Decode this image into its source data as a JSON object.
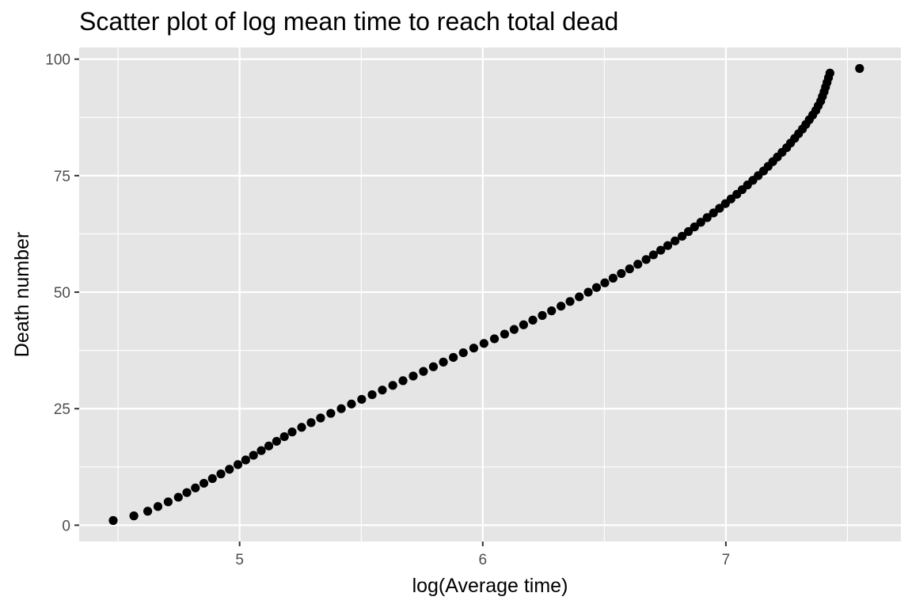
{
  "chart_data": {
    "type": "scatter",
    "title": "Scatter plot of log mean time to reach total dead",
    "xlabel": "log(Average time)",
    "ylabel": "Death number",
    "xlim": [
      4.34,
      7.72
    ],
    "ylim": [
      -3.5,
      102.5
    ],
    "x_ticks": [
      5,
      6,
      7
    ],
    "x_tick_labels": [
      "5",
      "6",
      "7"
    ],
    "y_ticks": [
      0,
      25,
      50,
      75,
      100
    ],
    "y_tick_labels": [
      "0",
      "25",
      "50",
      "75",
      "100"
    ],
    "grid": true,
    "legend": "none",
    "colors": {
      "panel": "#e5e5e5",
      "grid": "#ffffff",
      "point": "#000000",
      "tick_text": "#4d4d4d",
      "tick_mark": "#333333"
    },
    "points": [
      [
        4.48,
        1
      ],
      [
        4.565,
        2
      ],
      [
        4.622,
        3
      ],
      [
        4.664,
        4
      ],
      [
        4.706,
        5
      ],
      [
        4.748,
        6
      ],
      [
        4.783,
        7
      ],
      [
        4.818,
        8
      ],
      [
        4.853,
        9
      ],
      [
        4.888,
        10
      ],
      [
        4.923,
        11
      ],
      [
        4.958,
        12
      ],
      [
        4.993,
        13
      ],
      [
        5.025,
        14
      ],
      [
        5.057,
        15
      ],
      [
        5.089,
        16
      ],
      [
        5.12,
        17
      ],
      [
        5.152,
        18
      ],
      [
        5.184,
        19
      ],
      [
        5.216,
        20
      ],
      [
        5.255,
        21
      ],
      [
        5.294,
        22
      ],
      [
        5.333,
        23
      ],
      [
        5.375,
        24
      ],
      [
        5.418,
        25
      ],
      [
        5.46,
        26
      ],
      [
        5.502,
        27
      ],
      [
        5.545,
        28
      ],
      [
        5.587,
        29
      ],
      [
        5.63,
        30
      ],
      [
        5.672,
        31
      ],
      [
        5.714,
        32
      ],
      [
        5.756,
        33
      ],
      [
        5.797,
        34
      ],
      [
        5.838,
        35
      ],
      [
        5.879,
        36
      ],
      [
        5.92,
        37
      ],
      [
        5.963,
        38
      ],
      [
        6.005,
        39
      ],
      [
        6.048,
        40
      ],
      [
        6.09,
        41
      ],
      [
        6.129,
        42
      ],
      [
        6.168,
        43
      ],
      [
        6.206,
        44
      ],
      [
        6.245,
        45
      ],
      [
        6.283,
        46
      ],
      [
        6.322,
        47
      ],
      [
        6.359,
        48
      ],
      [
        6.397,
        49
      ],
      [
        6.434,
        50
      ],
      [
        6.468,
        51
      ],
      [
        6.502,
        52
      ],
      [
        6.536,
        53
      ],
      [
        6.57,
        54
      ],
      [
        6.604,
        55
      ],
      [
        6.638,
        56
      ],
      [
        6.672,
        57
      ],
      [
        6.702,
        58
      ],
      [
        6.732,
        59
      ],
      [
        6.761,
        60
      ],
      [
        6.791,
        61
      ],
      [
        6.82,
        62
      ],
      [
        6.846,
        63
      ],
      [
        6.871,
        64
      ],
      [
        6.897,
        65
      ],
      [
        6.923,
        66
      ],
      [
        6.949,
        67
      ],
      [
        6.974,
        68
      ],
      [
        6.998,
        69
      ],
      [
        7.021,
        70
      ],
      [
        7.045,
        71
      ],
      [
        7.067,
        72
      ],
      [
        7.089,
        73
      ],
      [
        7.111,
        74
      ],
      [
        7.133,
        75
      ],
      [
        7.155,
        76
      ],
      [
        7.174,
        77
      ],
      [
        7.193,
        78
      ],
      [
        7.212,
        79
      ],
      [
        7.231,
        80
      ],
      [
        7.25,
        81
      ],
      [
        7.266,
        82
      ],
      [
        7.283,
        83
      ],
      [
        7.299,
        84
      ],
      [
        7.315,
        85
      ],
      [
        7.329,
        86
      ],
      [
        7.343,
        87
      ],
      [
        7.357,
        88
      ],
      [
        7.37,
        89
      ],
      [
        7.38,
        90
      ],
      [
        7.39,
        91
      ],
      [
        7.397,
        92
      ],
      [
        7.404,
        93
      ],
      [
        7.41,
        94
      ],
      [
        7.416,
        95
      ],
      [
        7.422,
        96
      ],
      [
        7.428,
        97
      ],
      [
        7.55,
        98
      ]
    ]
  }
}
